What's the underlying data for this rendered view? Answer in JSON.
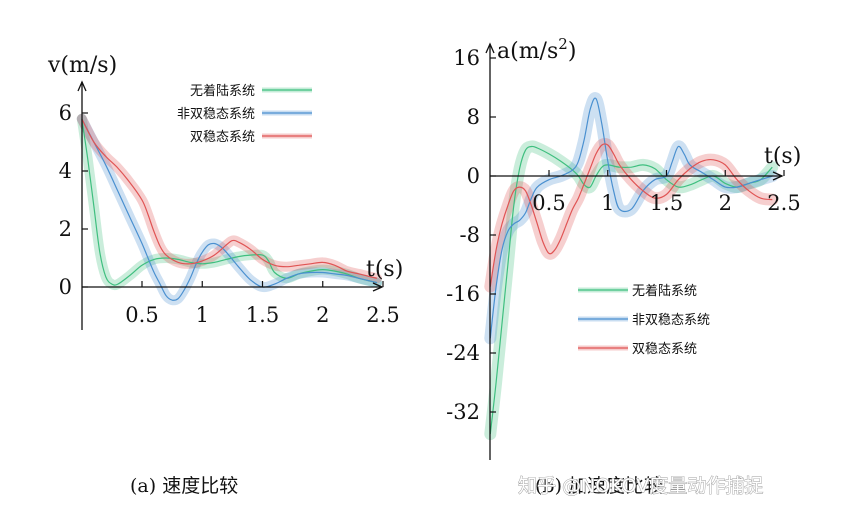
{
  "colors": {
    "green": "#3fbf7f",
    "blue": "#4a90d0",
    "red": "#e05454",
    "axis": "#111111"
  },
  "watermark": "知乎 @NOKOV度量动作捕捉",
  "chart_data": [
    {
      "type": "line",
      "caption": "(a) 速度比较",
      "ylabel": "v(m/s)",
      "xlabel": "t(s)",
      "xlim": [
        0,
        2.5
      ],
      "ylim": [
        0,
        7
      ],
      "xticks": [
        "0.5",
        "1",
        "1.5",
        "2",
        "2.5"
      ],
      "xtick_values": [
        0.5,
        1,
        1.5,
        2,
        2.5
      ],
      "yticks": [
        "0",
        "2",
        "4",
        "6"
      ],
      "ytick_values": [
        0,
        2,
        4,
        6
      ],
      "legend_position": "top-right",
      "series": [
        {
          "name": "无着陆系统",
          "color": "green",
          "x": [
            0,
            0.05,
            0.1,
            0.15,
            0.2,
            0.25,
            0.3,
            0.4,
            0.5,
            0.6,
            0.7,
            0.8,
            0.9,
            1.0,
            1.1,
            1.2,
            1.3,
            1.4,
            1.5,
            1.55,
            1.6,
            1.7,
            1.8,
            1.9,
            2.0,
            2.1,
            2.2,
            2.3,
            2.4,
            2.45
          ],
          "y": [
            5.8,
            4.4,
            2.8,
            1.2,
            0.35,
            0.1,
            0.1,
            0.4,
            0.75,
            0.95,
            1.0,
            0.95,
            0.85,
            0.8,
            0.85,
            0.95,
            1.05,
            1.1,
            1.1,
            0.9,
            0.5,
            0.3,
            0.45,
            0.55,
            0.6,
            0.55,
            0.45,
            0.3,
            0.2,
            0.15
          ]
        },
        {
          "name": "非双稳态系统",
          "color": "blue",
          "x": [
            0,
            0.1,
            0.2,
            0.3,
            0.4,
            0.5,
            0.55,
            0.6,
            0.65,
            0.7,
            0.75,
            0.8,
            0.85,
            0.9,
            0.95,
            1.0,
            1.05,
            1.1,
            1.15,
            1.2,
            1.3,
            1.4,
            1.5,
            1.6,
            1.7,
            1.8,
            1.9,
            2.0,
            2.1,
            2.2,
            2.3,
            2.4,
            2.45
          ],
          "y": [
            5.8,
            5.0,
            4.2,
            3.3,
            2.4,
            1.5,
            1.0,
            0.5,
            0.1,
            -0.3,
            -0.45,
            -0.4,
            -0.1,
            0.3,
            0.8,
            1.2,
            1.45,
            1.5,
            1.4,
            1.2,
            0.7,
            0.25,
            0.0,
            0.1,
            0.3,
            0.45,
            0.5,
            0.5,
            0.45,
            0.4,
            0.3,
            0.2,
            0.15
          ]
        },
        {
          "name": "双稳态系统",
          "color": "red",
          "x": [
            0,
            0.1,
            0.2,
            0.3,
            0.4,
            0.5,
            0.55,
            0.6,
            0.65,
            0.7,
            0.8,
            0.9,
            1.0,
            1.1,
            1.2,
            1.25,
            1.3,
            1.4,
            1.5,
            1.6,
            1.7,
            1.8,
            1.9,
            2.0,
            2.1,
            2.2,
            2.3,
            2.4,
            2.45
          ],
          "y": [
            5.8,
            5.0,
            4.5,
            4.1,
            3.6,
            3.0,
            2.5,
            1.9,
            1.4,
            1.1,
            0.85,
            0.8,
            0.9,
            1.1,
            1.45,
            1.6,
            1.55,
            1.3,
            0.95,
            0.75,
            0.7,
            0.75,
            0.8,
            0.85,
            0.75,
            0.55,
            0.45,
            0.35,
            0.3
          ]
        }
      ]
    },
    {
      "type": "line",
      "caption": "(b) 加速度比较",
      "ylabel_base": "a(m/s",
      "ylabel_sup": "2",
      "ylabel_end": ")",
      "xlabel": "t(s)",
      "xlim": [
        0,
        2.5
      ],
      "ylim": [
        -37,
        18
      ],
      "xticks": [
        "0.5",
        "1",
        "1.5",
        "2",
        "2.5"
      ],
      "xtick_values": [
        0.5,
        1,
        1.5,
        2,
        2.5
      ],
      "yticks": [
        "16",
        "8",
        "0",
        "-8",
        "-16",
        "-24",
        "-32"
      ],
      "ytick_values": [
        16,
        8,
        0,
        -8,
        -16,
        -24,
        -32
      ],
      "legend_position": "bottom-right",
      "series": [
        {
          "name": "无着陆系统",
          "color": "green",
          "x": [
            0,
            0.05,
            0.1,
            0.15,
            0.2,
            0.25,
            0.3,
            0.35,
            0.4,
            0.5,
            0.6,
            0.7,
            0.75,
            0.8,
            0.85,
            0.9,
            0.95,
            1.0,
            1.1,
            1.2,
            1.3,
            1.4,
            1.5,
            1.6,
            1.7,
            1.8,
            1.9,
            2.0,
            2.1,
            2.2,
            2.3,
            2.4
          ],
          "y": [
            -35,
            -28,
            -20,
            -12,
            -4,
            1,
            3.5,
            4,
            3.8,
            3,
            2,
            0.8,
            0,
            -1.2,
            -1.5,
            0,
            1.2,
            1.5,
            1.2,
            1.2,
            1.5,
            1.0,
            -0.5,
            -1.5,
            -1.2,
            -0.5,
            0,
            -1.0,
            -1.5,
            -1.0,
            -0.5,
            1.2
          ]
        },
        {
          "name": "非双稳态系统",
          "color": "blue",
          "x": [
            0,
            0.05,
            0.1,
            0.15,
            0.2,
            0.25,
            0.3,
            0.35,
            0.4,
            0.5,
            0.6,
            0.7,
            0.75,
            0.8,
            0.85,
            0.9,
            0.95,
            1.0,
            1.05,
            1.1,
            1.2,
            1.3,
            1.4,
            1.5,
            1.55,
            1.6,
            1.65,
            1.7,
            1.8,
            1.9,
            2.0,
            2.1,
            2.2,
            2.3,
            2.4
          ],
          "y": [
            -22,
            -15,
            -10,
            -7.5,
            -6.5,
            -6,
            -5,
            -3,
            -1.5,
            -0.5,
            0,
            0.8,
            2,
            5,
            9,
            10.5,
            7,
            2,
            -2,
            -4.5,
            -4.5,
            -2,
            -0.5,
            0,
            2,
            4,
            3,
            1.5,
            0.5,
            -0.5,
            -1.5,
            -1.5,
            -1.0,
            -0.5,
            0
          ]
        },
        {
          "name": "双稳态系统",
          "color": "red",
          "x": [
            0,
            0.05,
            0.1,
            0.15,
            0.2,
            0.25,
            0.3,
            0.35,
            0.4,
            0.45,
            0.5,
            0.55,
            0.6,
            0.65,
            0.7,
            0.75,
            0.8,
            0.85,
            0.9,
            0.95,
            1.0,
            1.05,
            1.1,
            1.2,
            1.3,
            1.4,
            1.5,
            1.6,
            1.7,
            1.8,
            1.9,
            2.0,
            2.1,
            2.2,
            2.3,
            2.4
          ],
          "y": [
            -15,
            -10,
            -6.5,
            -4,
            -2,
            -1.5,
            -2,
            -4,
            -6.5,
            -9,
            -10.5,
            -10,
            -8.5,
            -6.5,
            -4.5,
            -3,
            -1,
            1,
            3,
            4.2,
            4.2,
            3,
            1.5,
            -0.5,
            -2,
            -3,
            -2.5,
            -0.5,
            1,
            2,
            2.2,
            1.5,
            -0.5,
            -2,
            -3,
            -3.2
          ]
        }
      ]
    }
  ]
}
